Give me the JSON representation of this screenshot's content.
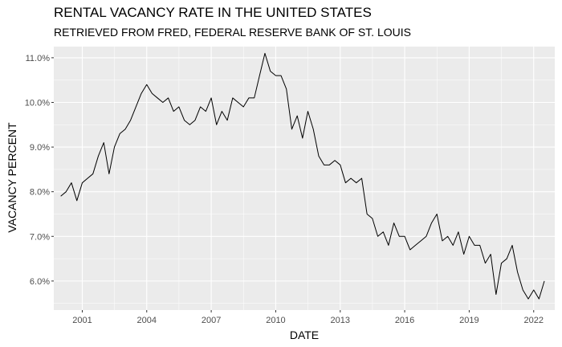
{
  "chart_data": {
    "type": "line",
    "title": "RENTAL VACANCY RATE IN THE UNITED STATES",
    "subtitle": "RETRIEVED FROM FRED, FEDERAL RESERVE BANK OF ST. LOUIS",
    "xlabel": "DATE",
    "ylabel": "VACANCY PERCENT",
    "x_ticks": [
      "2001",
      "2004",
      "2007",
      "2010",
      "2013",
      "2016",
      "2019",
      "2022"
    ],
    "y_ticks": [
      "6.0%",
      "7.0%",
      "8.0%",
      "9.0%",
      "10.0%",
      "11.0%"
    ],
    "ylim": [
      5.35,
      11.25
    ],
    "xlim": [
      "1999-09-05",
      "2022-12-25"
    ],
    "grid": true,
    "legend": "none",
    "colors": {
      "panel": "#ebebeb",
      "grid": "#ffffff",
      "line": "#000000"
    },
    "series": [
      {
        "x": [
          "2000-01-01",
          "2000-04-01",
          "2000-07-01",
          "2000-10-01",
          "2001-01-01",
          "2001-04-01",
          "2001-07-01",
          "2001-10-01",
          "2002-01-01",
          "2002-04-01",
          "2002-07-01",
          "2002-10-01",
          "2003-01-01",
          "2003-04-01",
          "2003-07-01",
          "2003-10-01",
          "2004-01-01",
          "2004-04-01",
          "2004-07-01",
          "2004-10-01",
          "2005-01-01",
          "2005-04-01",
          "2005-07-01",
          "2005-10-01",
          "2006-01-01",
          "2006-04-01",
          "2006-07-01",
          "2006-10-01",
          "2007-01-01",
          "2007-04-01",
          "2007-07-01",
          "2007-10-01",
          "2008-01-01",
          "2008-04-01",
          "2008-07-01",
          "2008-10-01",
          "2009-01-01",
          "2009-04-01",
          "2009-07-01",
          "2009-10-01",
          "2010-01-01",
          "2010-04-01",
          "2010-07-01",
          "2010-10-01",
          "2011-01-01",
          "2011-04-01",
          "2011-07-01",
          "2011-10-01",
          "2012-01-01",
          "2012-04-01",
          "2012-07-01",
          "2012-10-01",
          "2013-01-01",
          "2013-04-01",
          "2013-07-01",
          "2013-10-01",
          "2014-01-01",
          "2014-04-01",
          "2014-07-01",
          "2014-10-01",
          "2015-01-01",
          "2015-04-01",
          "2015-07-01",
          "2015-10-01",
          "2016-01-01",
          "2016-04-01",
          "2016-07-01",
          "2016-10-01",
          "2017-01-01",
          "2017-04-01",
          "2017-07-01",
          "2017-10-01",
          "2018-01-01",
          "2018-04-01",
          "2018-07-01",
          "2018-10-01",
          "2019-01-01",
          "2019-04-01",
          "2019-07-01",
          "2019-10-01",
          "2020-01-01",
          "2020-04-01",
          "2020-07-01",
          "2020-10-01",
          "2021-01-01",
          "2021-04-01",
          "2021-07-01",
          "2021-10-01",
          "2022-01-01",
          "2022-04-01",
          "2022-07-01"
        ],
        "values": [
          7.9,
          8.0,
          8.2,
          7.8,
          8.2,
          8.3,
          8.4,
          8.8,
          9.1,
          8.4,
          9.0,
          9.3,
          9.4,
          9.6,
          9.9,
          10.2,
          10.4,
          10.2,
          10.1,
          10.0,
          10.1,
          9.8,
          9.9,
          9.6,
          9.5,
          9.6,
          9.9,
          9.8,
          10.1,
          9.5,
          9.8,
          9.6,
          10.1,
          10.0,
          9.9,
          10.1,
          10.1,
          10.6,
          11.1,
          10.7,
          10.6,
          10.6,
          10.3,
          9.4,
          9.7,
          9.2,
          9.8,
          9.4,
          8.8,
          8.6,
          8.6,
          8.7,
          8.6,
          8.2,
          8.3,
          8.2,
          8.3,
          7.5,
          7.4,
          7.0,
          7.1,
          6.8,
          7.3,
          7.0,
          7.0,
          6.7,
          6.8,
          6.9,
          7.0,
          7.3,
          7.5,
          6.9,
          7.0,
          6.8,
          7.1,
          6.6,
          7.0,
          6.8,
          6.8,
          6.4,
          6.6,
          5.7,
          6.4,
          6.5,
          6.8,
          6.2,
          5.8,
          5.6,
          5.8,
          5.6,
          6.0
        ]
      }
    ]
  }
}
